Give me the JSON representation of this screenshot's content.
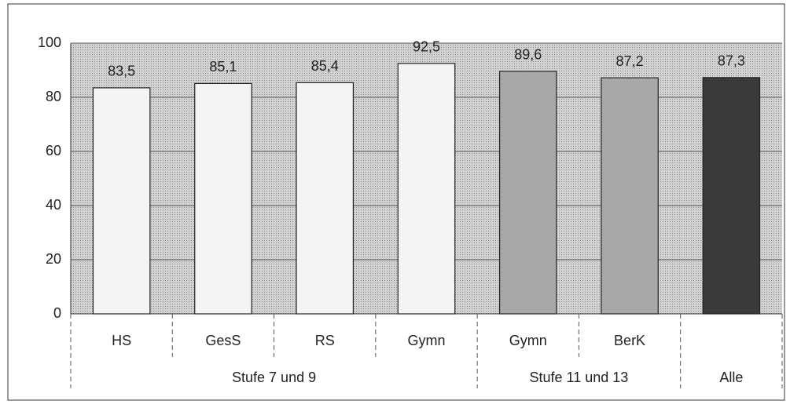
{
  "chart_data": {
    "type": "bar",
    "categories": [
      "HS",
      "GesS",
      "RS",
      "Gymn",
      "Gymn",
      "BerK",
      null
    ],
    "values": [
      83.5,
      85.1,
      85.4,
      92.5,
      89.6,
      87.2,
      87.3
    ],
    "value_labels": [
      "83,5",
      "85,1",
      "85,4",
      "92,5",
      "89,6",
      "87,2",
      "87,3"
    ],
    "colors": [
      "#f4f4f4",
      "#f4f4f4",
      "#f4f4f4",
      "#f4f4f4",
      "#a8a8a8",
      "#a8a8a8",
      "#3a3a3a"
    ],
    "groups": [
      {
        "label": "Stufe 7 und 9",
        "count": 4
      },
      {
        "label": "Stufe 11 und 13",
        "count": 2
      },
      {
        "label": "Alle",
        "count": 1
      }
    ],
    "ylim": [
      0,
      100
    ],
    "yticks": [
      0,
      20,
      40,
      60,
      80,
      100
    ],
    "grid": true
  }
}
